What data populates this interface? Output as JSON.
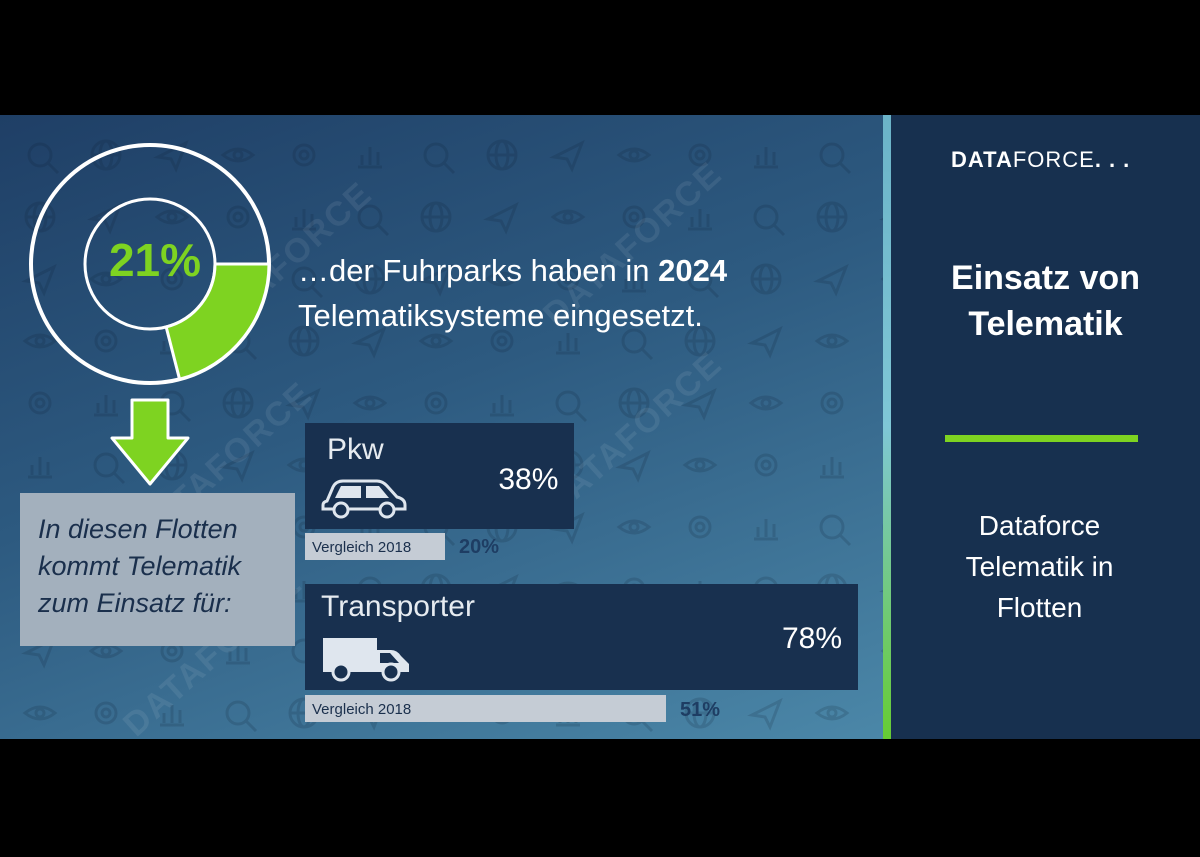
{
  "brand": {
    "logo_bold": "DATA",
    "logo_light": "FORCE",
    "logo_dots": "...",
    "watermark": "DATAFORCE"
  },
  "sidebar": {
    "title_line1": "Einsatz von",
    "title_line2": "Telematik",
    "subtitle_line1": "Dataforce",
    "subtitle_line2": "Telematik in",
    "subtitle_line3": "Flotten"
  },
  "headline": {
    "line1_prefix": "…der Fuhrparks haben in ",
    "line1_year": "2024",
    "line2": "Telematiksysteme eingesetzt."
  },
  "callout": {
    "line1": "In diesen Flotten",
    "line2": "kommt Telematik",
    "line3": "zum Einsatz für:"
  },
  "colors": {
    "accent_green": "#7ed321",
    "bar_navy": "#18304f",
    "compare_grey": "#c5ccd5"
  },
  "chart_data": [
    {
      "type": "pie",
      "variant": "donut",
      "values": [
        21,
        79
      ],
      "labels": [
        "21%",
        ""
      ],
      "colors": [
        "#7ed321",
        "transparent"
      ]
    },
    {
      "type": "bar",
      "orientation": "horizontal",
      "categories": [
        "Pkw",
        "Transporter"
      ],
      "series": [
        {
          "name": "",
          "values": [
            38,
            78
          ],
          "labels": [
            "38%",
            "78%"
          ]
        },
        {
          "name": "Vergleich 2018",
          "values": [
            20,
            51
          ],
          "labels": [
            "20%",
            "51%"
          ]
        }
      ],
      "compare_label": "Vergleich 2018"
    }
  ]
}
